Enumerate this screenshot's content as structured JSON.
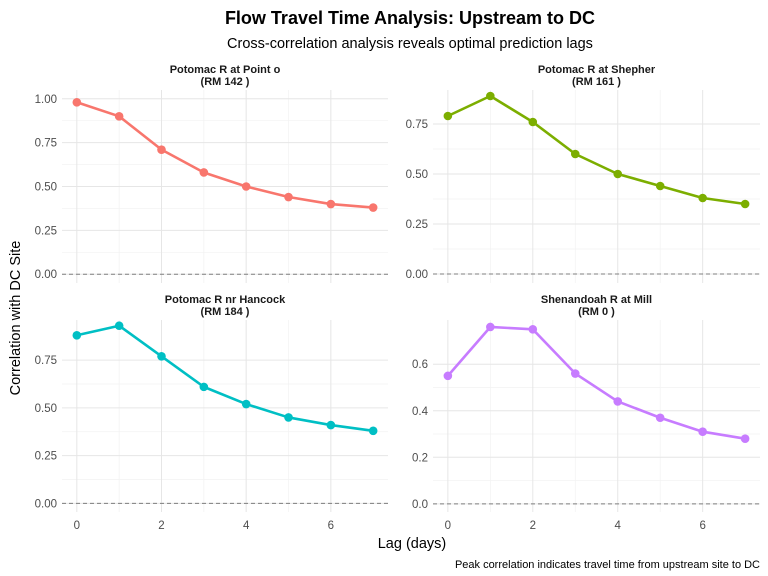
{
  "chart_data": {
    "type": "line",
    "title": "Flow Travel Time Analysis: Upstream to DC",
    "subtitle": "Cross-correlation analysis reveals optimal prediction lags",
    "xlabel": "Lag (days)",
    "ylabel": "Correlation with DC Site",
    "caption": "Peak correlation indicates travel time from upstream site to DC",
    "x": [
      0,
      1,
      2,
      3,
      4,
      5,
      6,
      7
    ],
    "xlim": [
      -0.35,
      7.35
    ],
    "x_ticks": [
      0,
      2,
      4,
      6
    ],
    "grid": true,
    "reference_line": 0,
    "panels": [
      {
        "strip_line1": "Potomac R at Point o",
        "strip_line2": "(RM 142 )",
        "color": "#F8766D",
        "values": [
          0.98,
          0.9,
          0.71,
          0.58,
          0.5,
          0.44,
          0.4,
          0.38
        ],
        "ylim": [
          -0.05,
          1.05
        ],
        "y_ticks": [
          0.0,
          0.25,
          0.5,
          0.75,
          1.0
        ],
        "y_tick_labels": [
          "0.00",
          "0.25",
          "0.50",
          "0.75",
          "1.00"
        ]
      },
      {
        "strip_line1": "Potomac R at Shepher",
        "strip_line2": "(RM 161 )",
        "color": "#7CAE00",
        "values": [
          0.79,
          0.89,
          0.76,
          0.6,
          0.5,
          0.44,
          0.38,
          0.35
        ],
        "ylim": [
          -0.045,
          0.92
        ],
        "y_ticks": [
          0.0,
          0.25,
          0.5,
          0.75
        ],
        "y_tick_labels": [
          "0.00",
          "0.25",
          "0.50",
          "0.75"
        ]
      },
      {
        "strip_line1": "Potomac R nr Hancock",
        "strip_line2": "(RM 184 )",
        "color": "#00BFC4",
        "values": [
          0.88,
          0.93,
          0.77,
          0.61,
          0.52,
          0.45,
          0.41,
          0.38
        ],
        "ylim": [
          -0.045,
          0.96
        ],
        "y_ticks": [
          0.0,
          0.25,
          0.5,
          0.75
        ],
        "y_tick_labels": [
          "0.00",
          "0.25",
          "0.50",
          "0.75"
        ]
      },
      {
        "strip_line1": "Shenandoah R at Mill",
        "strip_line2": "(RM 0 )",
        "color": "#C77CFF",
        "values": [
          0.55,
          0.76,
          0.75,
          0.56,
          0.44,
          0.37,
          0.31,
          0.28
        ],
        "ylim": [
          -0.035,
          0.79
        ],
        "y_ticks": [
          0.0,
          0.2,
          0.4,
          0.6
        ],
        "y_tick_labels": [
          "0.0",
          "0.2",
          "0.4",
          "0.6"
        ]
      }
    ]
  }
}
